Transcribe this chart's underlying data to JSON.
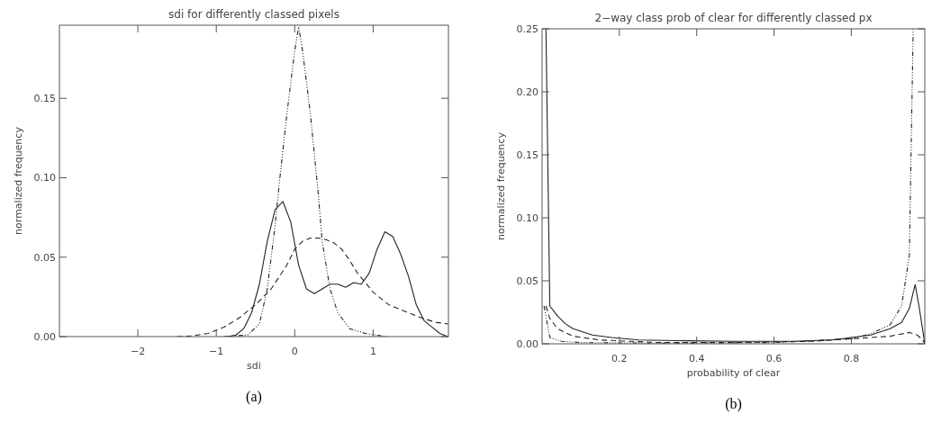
{
  "chart_data": [
    {
      "type": "line",
      "title": "sdi for differently classed pixels",
      "xlabel": "sdi",
      "ylabel": "normalized frequency",
      "xlim": [
        -3,
        1.96
      ],
      "ylim": [
        0,
        0.196
      ],
      "xticks": [
        -2,
        -1,
        0,
        1
      ],
      "yticks": [
        {
          "value": 0,
          "label": "0.00"
        },
        {
          "value": 0.05,
          "label": "0.05"
        },
        {
          "value": 0.1,
          "label": "0.10"
        },
        {
          "value": 0.15,
          "label": "0.15"
        }
      ],
      "grid": false,
      "annotations": [
        "(a)"
      ],
      "series": [
        {
          "color": "#222222",
          "line_style": "solid",
          "x": [
            -0.85,
            -0.75,
            -0.65,
            -0.55,
            -0.45,
            -0.35,
            -0.25,
            -0.15,
            -0.05,
            0.05,
            0.15,
            0.25,
            0.35,
            0.45,
            0.55,
            0.65,
            0.75,
            0.85,
            0.95,
            1.05,
            1.15,
            1.25,
            1.35,
            1.45,
            1.55,
            1.65,
            1.75,
            1.85,
            1.95
          ],
          "values": [
            0,
            0.001,
            0.005,
            0.015,
            0.033,
            0.06,
            0.08,
            0.085,
            0.072,
            0.045,
            0.03,
            0.027,
            0.03,
            0.033,
            0.033,
            0.031,
            0.034,
            0.033,
            0.04,
            0.055,
            0.066,
            0.063,
            0.052,
            0.038,
            0.02,
            0.01,
            0.006,
            0.002,
            0
          ]
        },
        {
          "color": "#222222",
          "line_style": "dashed",
          "x": [
            -1.5,
            -1.3,
            -1.1,
            -0.9,
            -0.7,
            -0.5,
            -0.3,
            -0.1,
            0,
            0.1,
            0.2,
            0.3,
            0.4,
            0.5,
            0.6,
            0.7,
            0.8,
            0.9,
            1,
            1.1,
            1.2,
            1.4,
            1.6,
            1.8,
            1.95
          ],
          "values": [
            0,
            0.0005,
            0.002,
            0.006,
            0.012,
            0.02,
            0.03,
            0.045,
            0.055,
            0.06,
            0.062,
            0.062,
            0.061,
            0.059,
            0.055,
            0.048,
            0.04,
            0.034,
            0.028,
            0.024,
            0.02,
            0.016,
            0.012,
            0.009,
            0.008
          ]
        },
        {
          "color": "#222222",
          "line_style": "dotted",
          "x": [
            -0.9,
            -0.6,
            -0.45,
            -0.35,
            -0.25,
            -0.2,
            -0.1,
            0,
            0.05,
            0.1,
            0.2,
            0.3,
            0.35,
            0.45,
            0.55,
            0.7,
            0.9,
            1.1,
            1.2
          ],
          "values": [
            0,
            0.001,
            0.008,
            0.03,
            0.07,
            0.095,
            0.14,
            0.18,
            0.195,
            0.18,
            0.14,
            0.09,
            0.06,
            0.03,
            0.015,
            0.005,
            0.002,
            0.0005,
            0
          ]
        }
      ]
    },
    {
      "type": "line",
      "title": "2−way class prob of clear for differently classed px",
      "xlabel": "probability of clear",
      "ylabel": "normalized frequency",
      "xlim": [
        0,
        0.99
      ],
      "ylim": [
        0,
        0.25
      ],
      "xticks": [
        0.2,
        0.4,
        0.6,
        0.8
      ],
      "yticks": [
        {
          "value": 0,
          "label": "0.00"
        },
        {
          "value": 0.05,
          "label": "0.05"
        },
        {
          "value": 0.1,
          "label": "0.10"
        },
        {
          "value": 0.15,
          "label": "0.15"
        },
        {
          "value": 0.2,
          "label": "0.20"
        },
        {
          "value": 0.25,
          "label": "0.25"
        }
      ],
      "grid": false,
      "annotations": [
        "(b)"
      ],
      "series": [
        {
          "color": "#222222",
          "line_style": "solid",
          "x": [
            0.01,
            0.02,
            0.04,
            0.06,
            0.08,
            0.1,
            0.13,
            0.18,
            0.25,
            0.35,
            0.5,
            0.65,
            0.75,
            0.8,
            0.85,
            0.9,
            0.93,
            0.95,
            0.965,
            0.975,
            0.99
          ],
          "values": [
            0.25,
            0.03,
            0.022,
            0.016,
            0.012,
            0.01,
            0.007,
            0.005,
            0.003,
            0.0025,
            0.002,
            0.002,
            0.003,
            0.005,
            0.007,
            0.012,
            0.017,
            0.028,
            0.047,
            0.03,
            0
          ]
        },
        {
          "color": "#222222",
          "line_style": "dashed",
          "x": [
            0.01,
            0.02,
            0.04,
            0.08,
            0.15,
            0.3,
            0.5,
            0.7,
            0.85,
            0.9,
            0.95,
            0.97,
            0.985,
            0.99
          ],
          "values": [
            0.03,
            0.02,
            0.012,
            0.006,
            0.003,
            0.001,
            0.001,
            0.002,
            0.005,
            0.006,
            0.009,
            0.007,
            0.003,
            0
          ]
        },
        {
          "color": "#222222",
          "line_style": "dotted",
          "x": [
            0.005,
            0.02,
            0.05,
            0.1,
            0.3,
            0.6,
            0.8,
            0.85,
            0.9,
            0.93,
            0.95,
            0.96
          ],
          "values": [
            0.03,
            0.005,
            0.002,
            0.001,
            0.0005,
            0.001,
            0.004,
            0.008,
            0.015,
            0.03,
            0.07,
            0.25
          ]
        }
      ]
    }
  ]
}
